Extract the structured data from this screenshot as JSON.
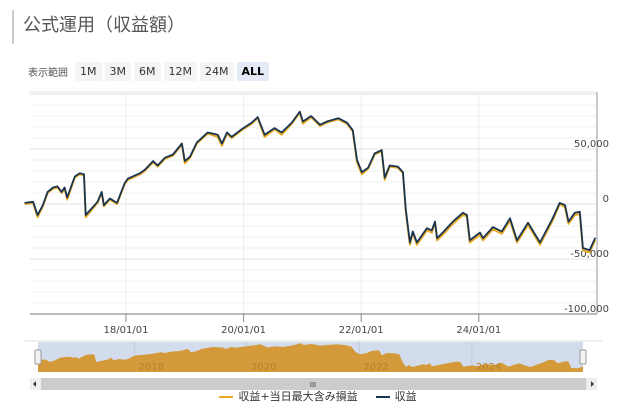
{
  "title": "公式運用（収益額）",
  "range": {
    "label": "表示範囲",
    "buttons": [
      "1M",
      "3M",
      "6M",
      "12M",
      "24M",
      "ALL"
    ],
    "active": "ALL"
  },
  "navigator": {
    "year_labels": [
      "2018",
      "2020",
      "2022",
      "2024"
    ],
    "scroll_grip": "III"
  },
  "colors": {
    "profit": "#1a3552",
    "profit_plus_loss": "#e8a820",
    "navigator_fill": "#d49a3a",
    "navigator_bg": "#d3dcec"
  },
  "chart_data": {
    "type": "line",
    "x_ticks": [
      "18/01/01",
      "20/01/01",
      "22/01/01",
      "24/01/01"
    ],
    "y_ticks": [
      50000,
      0,
      -50000,
      -100000
    ],
    "y_tick_labels": [
      "50,000",
      "0",
      "-50,000",
      "-100,000"
    ],
    "y_axis_position": "right",
    "ylim": [
      -100000,
      100000
    ],
    "xlim": [
      "2016-04-10",
      "2025-12-31"
    ],
    "grid": true,
    "legend": "bottom",
    "dates": [
      "2016-04-13",
      "2016-06-03",
      "2016-07-01",
      "2016-08-03",
      "2016-09-01",
      "2016-10-05",
      "2016-11-01",
      "2016-11-28",
      "2016-12-16",
      "2017-01-01",
      "2017-02-17",
      "2017-03-20",
      "2017-04-15",
      "2017-04-26",
      "2017-06-21",
      "2017-07-08",
      "2017-08-03",
      "2017-08-17",
      "2017-09-23",
      "2017-11-06",
      "2017-12-24",
      "2018-01-12",
      "2018-03-29",
      "2018-04-27",
      "2018-06-18",
      "2018-07-17",
      "2018-08-30",
      "2018-10-20",
      "2018-12-14",
      "2019-01-01",
      "2019-02-02",
      "2019-03-17",
      "2019-05-23",
      "2019-07-24",
      "2019-08-19",
      "2019-09-20",
      "2019-10-19",
      "2019-12-20",
      "2020-02-21",
      "2020-03-29",
      "2020-05-11",
      "2020-07-12",
      "2020-08-25",
      "2020-10-27",
      "2020-12-16",
      "2021-01-04",
      "2021-02-24",
      "2021-04-20",
      "2021-06-03",
      "2021-08-11",
      "2021-10-04",
      "2021-11-10",
      "2021-12-06",
      "2022-01-05",
      "2022-02-13",
      "2022-03-26",
      "2022-05-08",
      "2022-05-27",
      "2022-06-27",
      "2022-08-17",
      "2022-09-17",
      "2022-10-05",
      "2022-10-30",
      "2022-11-17",
      "2022-12-13",
      "2023-02-13",
      "2023-03-15",
      "2023-04-04",
      "2023-04-17",
      "2023-05-22",
      "2023-07-24",
      "2023-09-24",
      "2023-10-19",
      "2023-11-06",
      "2024-01-08",
      "2024-01-27",
      "2024-03-29",
      "2024-05-23",
      "2024-07-13",
      "2024-08-26",
      "2024-11-02",
      "2025-01-16",
      "2025-04-05",
      "2025-05-18",
      "2025-06-20",
      "2025-07-12",
      "2025-08-20",
      "2025-09-20",
      "2025-10-09",
      "2025-11-20",
      "2025-12-24"
    ],
    "series": [
      {
        "name": "収益+当日最大含み損益",
        "color": "#e8a820",
        "values": [
          0,
          1000,
          -12000,
          -2000,
          10000,
          14000,
          15000,
          10000,
          14000,
          4000,
          24000,
          27000,
          26000,
          -12000,
          -2000,
          1000,
          10000,
          -2000,
          4000,
          0,
          18000,
          22000,
          27000,
          30000,
          38000,
          34000,
          41000,
          44000,
          54000,
          37000,
          42000,
          55000,
          64000,
          61000,
          53000,
          64000,
          60000,
          67000,
          73000,
          78000,
          61000,
          68000,
          63000,
          73000,
          83000,
          73000,
          79000,
          71000,
          74000,
          77000,
          73000,
          66000,
          38000,
          27000,
          32000,
          45000,
          48000,
          22000,
          34000,
          33000,
          28000,
          -7000,
          -37000,
          -26000,
          -37000,
          -24000,
          -26000,
          -17000,
          -33000,
          -28000,
          -18000,
          -10000,
          -11000,
          -35000,
          -28000,
          -33000,
          -23000,
          -27000,
          -15000,
          -35000,
          -19000,
          -37000,
          -15000,
          0,
          -3000,
          -18000,
          -10000,
          -9000,
          -42000,
          -44000,
          -33000
        ]
      },
      {
        "name": "収益",
        "color": "#1a3552",
        "values": [
          1000,
          2000,
          -10000,
          -1000,
          11000,
          15000,
          16000,
          11000,
          15000,
          6000,
          25000,
          28000,
          27000,
          -10000,
          -1000,
          2000,
          11000,
          -1000,
          5000,
          1000,
          19000,
          23000,
          28000,
          31000,
          39000,
          35000,
          42000,
          45000,
          55000,
          39000,
          43000,
          56000,
          65000,
          63000,
          55000,
          65000,
          61000,
          68000,
          74000,
          79000,
          63000,
          69000,
          65000,
          74000,
          84000,
          75000,
          80000,
          72000,
          75000,
          78000,
          74000,
          67000,
          40000,
          29000,
          33000,
          46000,
          49000,
          24000,
          35000,
          34000,
          29000,
          -5000,
          -35000,
          -25000,
          -35000,
          -22000,
          -24000,
          -16000,
          -31000,
          -26000,
          -16000,
          -8000,
          -10000,
          -33000,
          -26000,
          -31000,
          -21000,
          -25000,
          -13000,
          -33000,
          -17000,
          -35000,
          -13000,
          1000,
          -1000,
          -16000,
          -8000,
          -7000,
          -40000,
          -42000,
          -31000
        ]
      }
    ]
  }
}
